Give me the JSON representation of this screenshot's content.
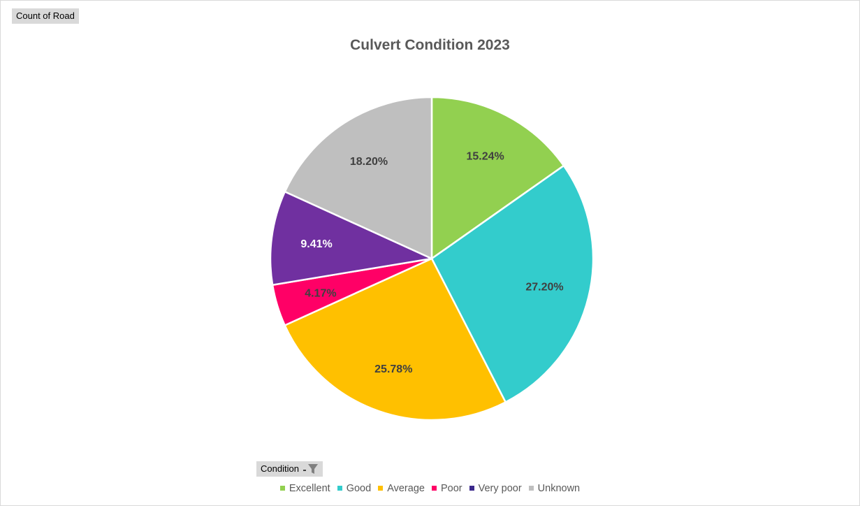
{
  "field_buttons": {
    "values_label": "Count of Road",
    "legend_field_label": "Condition"
  },
  "chart_data": {
    "type": "pie",
    "title": "Culvert Condition 2023",
    "categories": [
      "Excellent",
      "Good",
      "Average",
      "Poor",
      "Very poor",
      "Unknown"
    ],
    "values": [
      15.24,
      27.2,
      25.78,
      4.17,
      9.41,
      18.2
    ],
    "data_labels": [
      "15.24%",
      "27.20%",
      "25.78%",
      "4.17%",
      "9.41%",
      "18.20%"
    ],
    "colors": [
      "#92d050",
      "#33cccc",
      "#ffc000",
      "#ff0066",
      "#7030a0",
      "#bfbfbf"
    ],
    "legend_swatch_colors": [
      "#92d050",
      "#33cccc",
      "#ffc000",
      "#ff0066",
      "#3c2a8c",
      "#bfbfbf"
    ],
    "label_color": "#404040",
    "label_color_on_dark": "#ffffff",
    "legend_position": "bottom"
  }
}
